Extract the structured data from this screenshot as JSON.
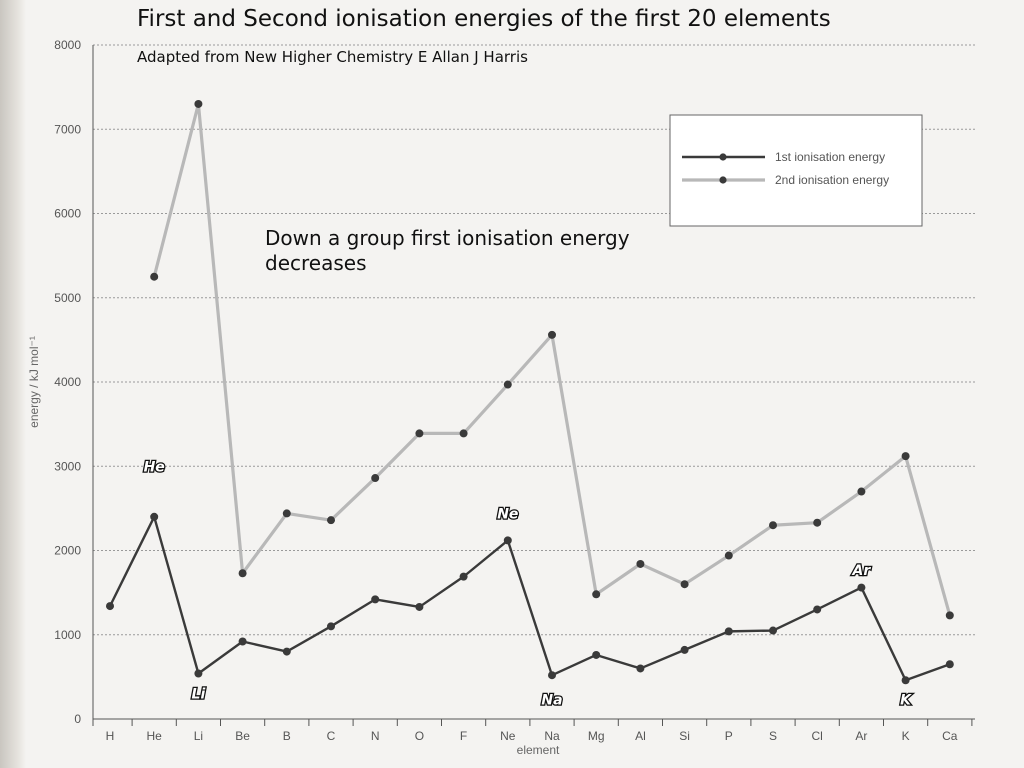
{
  "header": {
    "title": "First and Second ionisation energies of the first 20 elements",
    "subtitle": "Adapted from New Higher Chemistry E Allan J Harris",
    "annotation": "Down a group first ionisation energy decreases"
  },
  "chart_data": {
    "type": "line",
    "xlabel": "element",
    "ylabel": "energy / kJ mol⁻¹",
    "ylim": [
      0,
      8000
    ],
    "yticks": [
      0,
      1000,
      2000,
      3000,
      4000,
      5000,
      6000,
      7000,
      8000
    ],
    "grid": true,
    "legend_position": "top-right",
    "categories": [
      "H",
      "He",
      "Li",
      "Be",
      "B",
      "C",
      "N",
      "O",
      "F",
      "Ne",
      "Na",
      "Mg",
      "Al",
      "Si",
      "P",
      "S",
      "Cl",
      "Ar",
      "K",
      "Ca"
    ],
    "series": [
      {
        "name": "1st ionisation energy",
        "color": "#3a3a3a",
        "values": [
          1340,
          2400,
          540,
          920,
          800,
          1100,
          1420,
          1330,
          1690,
          2120,
          520,
          760,
          600,
          820,
          1040,
          1050,
          1300,
          1560,
          460,
          650
        ]
      },
      {
        "name": "2nd ionisation energy",
        "color": "#b8b8b8",
        "values": [
          null,
          5250,
          7300,
          1730,
          2440,
          2360,
          2860,
          3390,
          3390,
          3970,
          4560,
          1480,
          1840,
          1600,
          1940,
          2300,
          2330,
          2700,
          3120,
          1230
        ]
      }
    ],
    "callouts": [
      {
        "text": "He",
        "category": "He",
        "value": 3000
      },
      {
        "text": "Li",
        "category": "Li",
        "value": 300
      },
      {
        "text": "Ne",
        "category": "Ne",
        "value": 2440
      },
      {
        "text": "Na",
        "category": "Na",
        "value": 230
      },
      {
        "text": "Ar",
        "category": "Ar",
        "value": 1770
      },
      {
        "text": "K",
        "category": "K",
        "value": 230
      }
    ]
  }
}
